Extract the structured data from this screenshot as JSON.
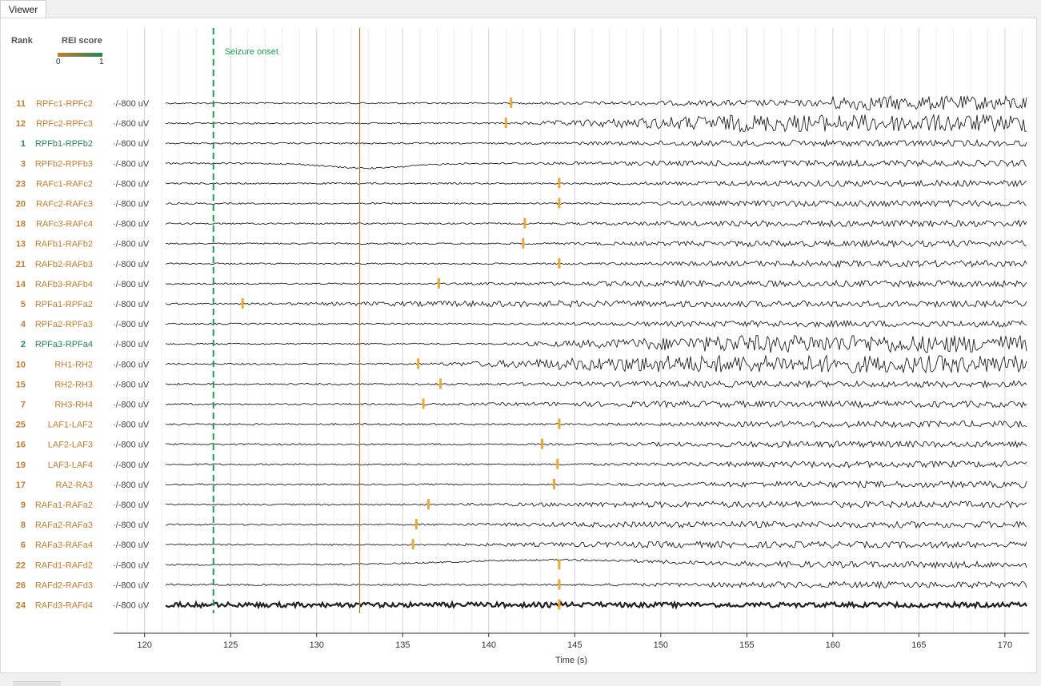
{
  "window": {
    "tab_label": "Viewer"
  },
  "header": {
    "rank_label": "Rank",
    "score_label": "REI score",
    "scale_min": "0",
    "scale_max": "1",
    "scale_colors": [
      "#c77b2a",
      "#1e8a55"
    ]
  },
  "annotations": {
    "seizure_onset_label": "Seizure onset",
    "seizure_onset_time": 124,
    "marker_line_time": 132.5,
    "seizure_color": "#1e9b5a",
    "marker_line_color": "#b8731c",
    "onset_tick_color": "#f0a830"
  },
  "axis": {
    "xlabel": "Time (s)",
    "xlim": [
      118.2,
      171.4
    ],
    "ticks": [
      120,
      125,
      130,
      135,
      140,
      145,
      150,
      155,
      160,
      165,
      170
    ],
    "tick_labels": [
      "120",
      "125",
      "130",
      "135",
      "140",
      "145",
      "150",
      "155",
      "160",
      "165",
      "170"
    ]
  },
  "chart_data": {
    "type": "line",
    "channels": [
      {
        "rank": "11",
        "name": "RPFc1-RPFc2",
        "scale": "·/-800 uV",
        "group": "orange",
        "onset": 141.3
      },
      {
        "rank": "12",
        "name": "RPFc2-RPFc3",
        "scale": "·/-800 uV",
        "group": "orange",
        "onset": 141.0
      },
      {
        "rank": "1",
        "name": "RPFb1-RPFb2",
        "scale": "·/-800 uV",
        "group": "green",
        "onset": null
      },
      {
        "rank": "3",
        "name": "RPFb2-RPFb3",
        "scale": "·/-800 uV",
        "group": "orange",
        "onset": null
      },
      {
        "rank": "23",
        "name": "RAFc1-RAFc2",
        "scale": "·/-800 uV",
        "group": "orange",
        "onset": 144.1
      },
      {
        "rank": "20",
        "name": "RAFc2-RAFc3",
        "scale": "·/-800 uV",
        "group": "orange",
        "onset": 144.1
      },
      {
        "rank": "18",
        "name": "RAFc3-RAFc4",
        "scale": "·/-800 uV",
        "group": "orange",
        "onset": 142.1
      },
      {
        "rank": "13",
        "name": "RAFb1-RAFb2",
        "scale": "·/-800 uV",
        "group": "orange",
        "onset": 142.0
      },
      {
        "rank": "21",
        "name": "RAFb2-RAFb3",
        "scale": "·/-800 uV",
        "group": "orange",
        "onset": 144.1
      },
      {
        "rank": "14",
        "name": "RAFb3-RAFb4",
        "scale": "·/-800 uV",
        "group": "orange",
        "onset": 137.1
      },
      {
        "rank": "5",
        "name": "RPFa1-RPFa2",
        "scale": "·/-800 uV",
        "group": "orange",
        "onset": 125.7
      },
      {
        "rank": "4",
        "name": "RPFa2-RPFa3",
        "scale": "·/-800 uV",
        "group": "orange",
        "onset": null
      },
      {
        "rank": "2",
        "name": "RPFa3-RPFa4",
        "scale": "·/-800 uV",
        "group": "green",
        "onset": null
      },
      {
        "rank": "10",
        "name": "RH1-RH2",
        "scale": "·/-800 uV",
        "group": "orange",
        "onset": 135.9
      },
      {
        "rank": "15",
        "name": "RH2-RH3",
        "scale": "·/-800 uV",
        "group": "orange",
        "onset": 137.2
      },
      {
        "rank": "7",
        "name": "RH3-RH4",
        "scale": "·/-800 uV",
        "group": "orange",
        "onset": 136.2
      },
      {
        "rank": "25",
        "name": "LAF1-LAF2",
        "scale": "·/-800 uV",
        "group": "orange",
        "onset": 144.1
      },
      {
        "rank": "16",
        "name": "LAF2-LAF3",
        "scale": "·/-800 uV",
        "group": "orange",
        "onset": 143.1
      },
      {
        "rank": "19",
        "name": "LAF3-LAF4",
        "scale": "·/-800 uV",
        "group": "orange",
        "onset": 144.0
      },
      {
        "rank": "17",
        "name": "RA2-RA3",
        "scale": "·/-800 uV",
        "group": "orange",
        "onset": 143.8
      },
      {
        "rank": "9",
        "name": "RAFa1-RAFa2",
        "scale": "·/-800 uV",
        "group": "orange",
        "onset": 136.5
      },
      {
        "rank": "8",
        "name": "RAFa2-RAFa3",
        "scale": "·/-800 uV",
        "group": "orange",
        "onset": 135.8
      },
      {
        "rank": "6",
        "name": "RAFa3-RAFa4",
        "scale": "·/-800 uV",
        "group": "orange",
        "onset": 135.6
      },
      {
        "rank": "22",
        "name": "RAFd1-RAFd2",
        "scale": "·/-800 uV",
        "group": "orange",
        "onset": 144.1
      },
      {
        "rank": "26",
        "name": "RAFd2-RAFd3",
        "scale": "·/-800 uV",
        "group": "orange",
        "onset": 144.1
      },
      {
        "rank": "24",
        "name": "RAFd3-RAFd4",
        "scale": "·/-800 uV",
        "group": "orange",
        "onset": 144.1
      }
    ]
  }
}
